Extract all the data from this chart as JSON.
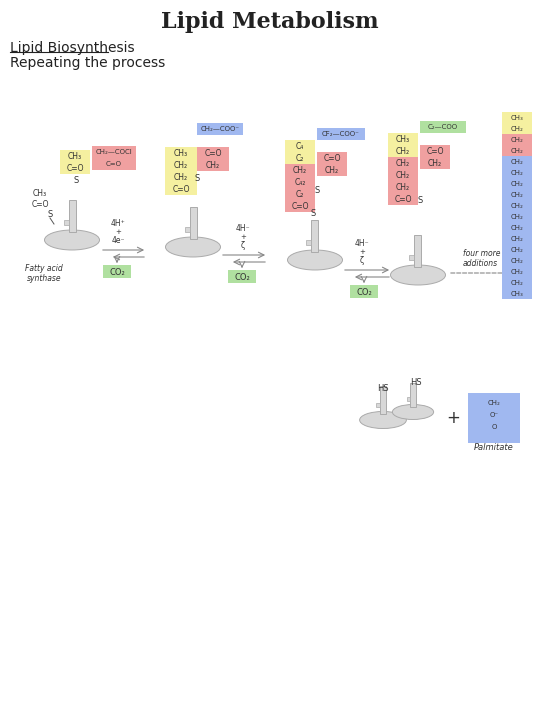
{
  "title": "Lipid Metabolism",
  "subtitle": "Lipid Biosynthesis",
  "subtitle2": "Repeating the process",
  "bg_color": "#ffffff",
  "title_fontsize": 16,
  "subtitle_fontsize": 10,
  "body_fontsize": 7,
  "colors": {
    "yellow": "#f5f0a0",
    "pink": "#f0a0a0",
    "blue": "#a0b8f0",
    "green": "#b0e0a0",
    "gray_enzyme": "#d8d8d8",
    "gray_outline": "#aaaaaa",
    "text": "#333333",
    "arrow": "#888888"
  }
}
